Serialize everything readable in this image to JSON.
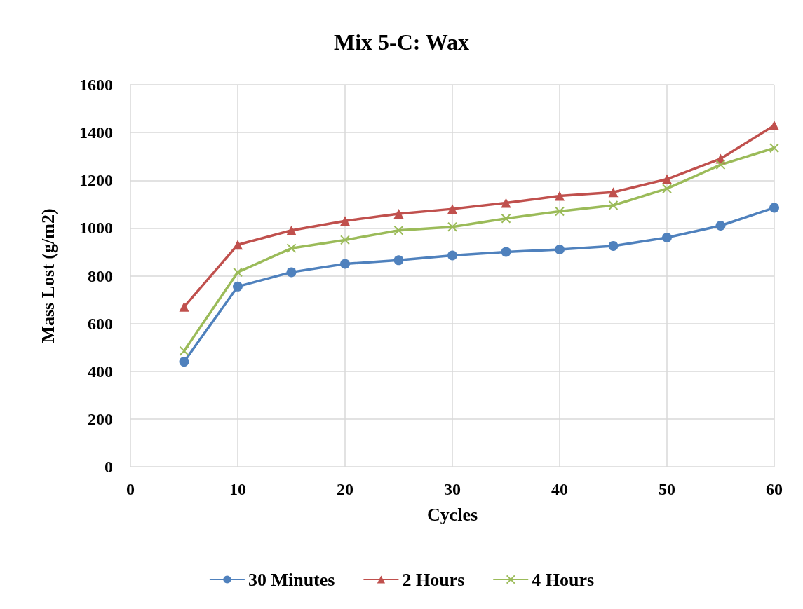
{
  "chart_data": {
    "type": "line",
    "title": "Mix 5-C: Wax",
    "xlabel": "Cycles",
    "ylabel": "Mass Lost (g/m2)",
    "x": [
      5,
      10,
      15,
      20,
      25,
      30,
      35,
      40,
      45,
      50,
      55,
      60
    ],
    "series": [
      {
        "name": "30 Minutes",
        "color": "#4f81bd",
        "marker": "circle",
        "values": [
          440,
          755,
          815,
          850,
          865,
          885,
          900,
          910,
          925,
          960,
          1010,
          1085
        ]
      },
      {
        "name": "2 Hours",
        "color": "#c0504d",
        "marker": "triangle",
        "values": [
          670,
          930,
          990,
          1030,
          1060,
          1080,
          1105,
          1135,
          1150,
          1205,
          1290,
          1430
        ]
      },
      {
        "name": "4 Hours",
        "color": "#9bbb59",
        "marker": "cross",
        "values": [
          485,
          815,
          915,
          950,
          990,
          1005,
          1040,
          1070,
          1095,
          1165,
          1265,
          1335
        ]
      }
    ],
    "xlim": [
      0,
      60
    ],
    "xticks": [
      0,
      10,
      20,
      30,
      40,
      50,
      60
    ],
    "ylim": [
      0,
      1600
    ],
    "yticks": [
      0,
      200,
      400,
      600,
      800,
      1000,
      1200,
      1400,
      1600
    ],
    "grid": true,
    "legend": "bottom"
  }
}
